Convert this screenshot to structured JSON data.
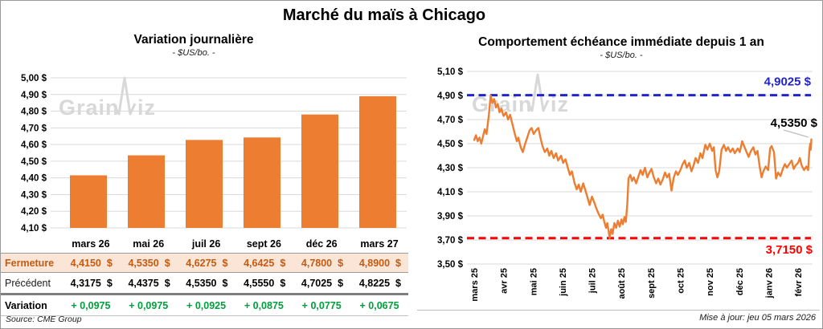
{
  "page_title": "Marché du maïs à Chicago",
  "watermark": "GrainWiz",
  "colors": {
    "bar_orange": "#ED7D31",
    "line_orange": "#ED7D31",
    "high_blue": "#2323CB",
    "low_red": "#FF0000",
    "fermeture_text": "#C55A11",
    "fermeture_bg": "#FBE5D6",
    "variation_green": "#00A03C",
    "gridline": "#D9D9D9"
  },
  "chart_data": [
    {
      "type": "bar",
      "title": "Variation journalière",
      "subtitle": "- $US/bo. -",
      "unit": "$US/bo.",
      "categories": [
        "mars 26",
        "mai 26",
        "juil 26",
        "sept 26",
        "déc 26",
        "mars 27"
      ],
      "values": [
        4.415,
        4.535,
        4.6275,
        4.6425,
        4.78,
        4.89
      ],
      "ylim": [
        4.1,
        5.0
      ],
      "ytick_step": 0.1,
      "grid": true,
      "legend": "none"
    },
    {
      "type": "line",
      "title": "Comportement échéance immédiate depuis 1 an",
      "subtitle": "- $US/bo. -",
      "unit": "$US/bo.",
      "x_labels": [
        "mars 25",
        "avr 25",
        "mai 25",
        "juin 25",
        "juil 25",
        "août 25",
        "sept 25",
        "oct 25",
        "nov 25",
        "déc 25",
        "janv 26",
        "févr 26"
      ],
      "ylim": [
        3.5,
        5.1
      ],
      "ytick_step": 0.2,
      "grid": true,
      "legend": "none",
      "high_line": {
        "value": 4.9025,
        "label": "4,9025 $"
      },
      "low_line": {
        "value": 3.715,
        "label": "3,7150 $"
      },
      "last_point": {
        "value": 4.535,
        "label": "4,5350 $"
      },
      "points": [
        [
          0,
          4.53
        ],
        [
          0.06,
          4.57
        ],
        [
          0.12,
          4.52
        ],
        [
          0.18,
          4.55
        ],
        [
          0.24,
          4.5
        ],
        [
          0.3,
          4.56
        ],
        [
          0.36,
          4.62
        ],
        [
          0.42,
          4.58
        ],
        [
          0.5,
          4.74
        ],
        [
          0.56,
          4.9
        ],
        [
          0.62,
          4.84
        ],
        [
          0.68,
          4.87
        ],
        [
          0.74,
          4.8
        ],
        [
          0.8,
          4.83
        ],
        [
          0.86,
          4.76
        ],
        [
          0.92,
          4.79
        ],
        [
          1.0,
          4.73
        ],
        [
          1.08,
          4.76
        ],
        [
          1.15,
          4.7
        ],
        [
          1.22,
          4.74
        ],
        [
          1.3,
          4.66
        ],
        [
          1.38,
          4.58
        ],
        [
          1.45,
          4.52
        ],
        [
          1.5,
          4.55
        ],
        [
          1.58,
          4.47
        ],
        [
          1.65,
          4.43
        ],
        [
          1.72,
          4.49
        ],
        [
          1.8,
          4.55
        ],
        [
          1.88,
          4.61
        ],
        [
          1.95,
          4.63
        ],
        [
          2.02,
          4.58
        ],
        [
          2.1,
          4.61
        ],
        [
          2.18,
          4.63
        ],
        [
          2.25,
          4.55
        ],
        [
          2.32,
          4.48
        ],
        [
          2.4,
          4.43
        ],
        [
          2.48,
          4.46
        ],
        [
          2.55,
          4.4
        ],
        [
          2.62,
          4.44
        ],
        [
          2.7,
          4.38
        ],
        [
          2.78,
          4.42
        ],
        [
          2.85,
          4.36
        ],
        [
          2.95,
          4.4
        ],
        [
          3.02,
          4.34
        ],
        [
          3.1,
          4.37
        ],
        [
          3.18,
          4.3
        ],
        [
          3.25,
          4.24
        ],
        [
          3.32,
          4.27
        ],
        [
          3.4,
          4.18
        ],
        [
          3.48,
          4.12
        ],
        [
          3.55,
          4.16
        ],
        [
          3.62,
          4.1
        ],
        [
          3.7,
          4.17
        ],
        [
          3.78,
          4.11
        ],
        [
          3.85,
          4.05
        ],
        [
          3.92,
          3.99
        ],
        [
          4.0,
          4.06
        ],
        [
          4.08,
          4.01
        ],
        [
          4.15,
          3.96
        ],
        [
          4.22,
          3.92
        ],
        [
          4.3,
          3.88
        ],
        [
          4.36,
          3.91
        ],
        [
          4.42,
          3.85
        ],
        [
          4.48,
          3.8
        ],
        [
          4.52,
          3.84
        ],
        [
          4.56,
          3.78
        ],
        [
          4.6,
          3.715
        ],
        [
          4.65,
          3.79
        ],
        [
          4.7,
          3.75
        ],
        [
          4.76,
          3.84
        ],
        [
          4.82,
          3.8
        ],
        [
          4.88,
          3.86
        ],
        [
          4.94,
          3.81
        ],
        [
          5.0,
          3.87
        ],
        [
          5.05,
          3.83
        ],
        [
          5.1,
          3.89
        ],
        [
          5.15,
          3.85
        ],
        [
          5.2,
          4.0
        ],
        [
          5.24,
          4.21
        ],
        [
          5.3,
          4.24
        ],
        [
          5.36,
          4.19
        ],
        [
          5.42,
          4.22
        ],
        [
          5.5,
          4.17
        ],
        [
          5.58,
          4.23
        ],
        [
          5.65,
          4.28
        ],
        [
          5.72,
          4.24
        ],
        [
          5.8,
          4.3
        ],
        [
          5.88,
          4.22
        ],
        [
          5.95,
          4.26
        ],
        [
          6.02,
          4.29
        ],
        [
          6.1,
          4.22
        ],
        [
          6.18,
          4.17
        ],
        [
          6.25,
          4.21
        ],
        [
          6.32,
          4.16
        ],
        [
          6.4,
          4.2
        ],
        [
          6.48,
          4.26
        ],
        [
          6.55,
          4.22
        ],
        [
          6.62,
          4.25
        ],
        [
          6.7,
          4.11
        ],
        [
          6.78,
          4.22
        ],
        [
          6.85,
          4.27
        ],
        [
          6.92,
          4.24
        ],
        [
          7.0,
          4.28
        ],
        [
          7.08,
          4.33
        ],
        [
          7.15,
          4.36
        ],
        [
          7.22,
          4.3
        ],
        [
          7.3,
          4.34
        ],
        [
          7.38,
          4.27
        ],
        [
          7.45,
          4.32
        ],
        [
          7.52,
          4.38
        ],
        [
          7.6,
          4.34
        ],
        [
          7.68,
          4.42
        ],
        [
          7.75,
          4.38
        ],
        [
          7.85,
          4.49
        ],
        [
          7.92,
          4.45
        ],
        [
          8.0,
          4.5
        ],
        [
          8.08,
          4.44
        ],
        [
          8.14,
          4.47
        ],
        [
          8.2,
          4.28
        ],
        [
          8.26,
          4.22
        ],
        [
          8.32,
          4.27
        ],
        [
          8.4,
          4.45
        ],
        [
          8.48,
          4.49
        ],
        [
          8.55,
          4.44
        ],
        [
          8.62,
          4.47
        ],
        [
          8.7,
          4.43
        ],
        [
          8.78,
          4.46
        ],
        [
          8.85,
          4.42
        ],
        [
          8.95,
          4.46
        ],
        [
          9.02,
          4.43
        ],
        [
          9.1,
          4.52
        ],
        [
          9.18,
          4.47
        ],
        [
          9.25,
          4.43
        ],
        [
          9.32,
          4.39
        ],
        [
          9.4,
          4.44
        ],
        [
          9.48,
          4.47
        ],
        [
          9.55,
          4.41
        ],
        [
          9.62,
          4.44
        ],
        [
          9.7,
          4.3
        ],
        [
          9.76,
          4.22
        ],
        [
          9.82,
          4.27
        ],
        [
          9.9,
          4.31
        ],
        [
          9.98,
          4.28
        ],
        [
          10.05,
          4.46
        ],
        [
          10.1,
          4.48
        ],
        [
          10.18,
          4.43
        ],
        [
          10.25,
          4.21
        ],
        [
          10.32,
          4.26
        ],
        [
          10.4,
          4.23
        ],
        [
          10.48,
          4.29
        ],
        [
          10.55,
          4.33
        ],
        [
          10.62,
          4.3
        ],
        [
          10.7,
          4.33
        ],
        [
          10.78,
          4.36
        ],
        [
          10.85,
          4.29
        ],
        [
          10.92,
          4.32
        ],
        [
          11.0,
          4.34
        ],
        [
          11.06,
          4.38
        ],
        [
          11.12,
          4.32
        ],
        [
          11.2,
          4.28
        ],
        [
          11.28,
          4.31
        ],
        [
          11.34,
          4.28
        ],
        [
          11.38,
          4.44
        ],
        [
          11.41,
          4.5
        ],
        [
          11.43,
          4.45
        ],
        [
          11.45,
          4.535
        ]
      ]
    }
  ],
  "table": {
    "columns": [
      "mars 26",
      "mai 26",
      "juil 26",
      "sept 26",
      "déc 26",
      "mars 27"
    ],
    "rows": [
      {
        "label": "Fermeture",
        "values": [
          "4,4150 $",
          "4,5350 $",
          "4,6275 $",
          "4,6425 $",
          "4,7800 $",
          "4,8900 $"
        ]
      },
      {
        "label": "Précédent",
        "values": [
          "4,3175 $",
          "4,4375 $",
          "4,5350 $",
          "4,5550 $",
          "4,7025 $",
          "4,8225 $"
        ]
      },
      {
        "label": "Variation",
        "values": [
          "+ 0,0975",
          "+ 0,0975",
          "+ 0,0925",
          "+ 0,0875",
          "+ 0,0775",
          "+ 0,0675"
        ]
      }
    ]
  },
  "footer": {
    "source": "Source: CME Group",
    "updated": "Mise à jour: jeu 05 mars 2026"
  }
}
